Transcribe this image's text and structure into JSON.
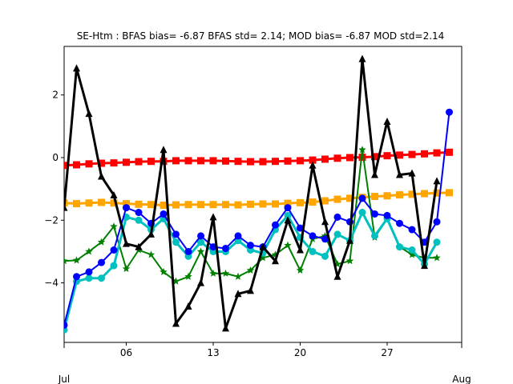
{
  "chart_data": {
    "type": "line",
    "title": "SE-Htm   : BFAS bias= -6.87 BFAS std= 2.14; MOD bias= -6.87 MOD std=2.14",
    "xlabel": "",
    "ylabel": "",
    "x": [
      0,
      1,
      2,
      3,
      4,
      5,
      6,
      7,
      8,
      9,
      10,
      11,
      12,
      13,
      14,
      15,
      16,
      17,
      18,
      19,
      20,
      21,
      22,
      23,
      24,
      25,
      26,
      27,
      28,
      29,
      30,
      31,
      32
    ],
    "xlim": [
      0,
      32
    ],
    "ylim": [
      -5.9,
      3.55
    ],
    "x_ticks": [
      {
        "pos": 5,
        "label": "06"
      },
      {
        "pos": 12,
        "label": "13"
      },
      {
        "pos": 19,
        "label": "20"
      },
      {
        "pos": 26,
        "label": "27"
      }
    ],
    "x_secondary_ticks": [
      {
        "pos": 0,
        "label": "Jul"
      },
      {
        "pos": 32,
        "label": "Aug"
      }
    ],
    "y_ticks": [
      2,
      0,
      -2,
      -4
    ],
    "y_tick_labels": [
      "2",
      "0",
      "−2",
      "−4"
    ],
    "grid": false,
    "legend": "none",
    "series": [
      {
        "color": "#ffa500",
        "marker": "square",
        "line_width": 3,
        "values": [
          -1.45,
          -1.47,
          -1.45,
          -1.43,
          -1.45,
          -1.47,
          -1.49,
          -1.5,
          -1.52,
          -1.51,
          -1.5,
          -1.5,
          -1.5,
          -1.5,
          -1.51,
          -1.49,
          -1.48,
          -1.48,
          -1.46,
          -1.44,
          -1.42,
          -1.38,
          -1.33,
          -1.3,
          -1.27,
          -1.24,
          -1.22,
          -1.19,
          -1.17,
          -1.15,
          -1.13,
          -1.12,
          null
        ]
      },
      {
        "color": "#ff0000",
        "marker": "square",
        "line_width": 3,
        "values": [
          -0.25,
          -0.23,
          -0.2,
          -0.18,
          -0.17,
          -0.15,
          -0.13,
          -0.12,
          -0.12,
          -0.1,
          -0.1,
          -0.1,
          -0.1,
          -0.11,
          -0.12,
          -0.13,
          -0.13,
          -0.12,
          -0.11,
          -0.1,
          -0.08,
          -0.05,
          -0.02,
          0,
          0.01,
          0.03,
          0.06,
          0.08,
          0.1,
          0.12,
          0.15,
          0.17,
          null
        ]
      },
      {
        "color": "#008000",
        "marker": "star",
        "line_width": 2,
        "values": [
          -3.3,
          -3.28,
          -3.0,
          -2.7,
          -2.2,
          -3.55,
          -2.95,
          -3.1,
          -3.65,
          -3.95,
          -3.8,
          -3.0,
          -3.7,
          -3.7,
          -3.8,
          -3.6,
          -3.2,
          -3.1,
          -2.8,
          -3.6,
          -2.6,
          -2.5,
          -3.4,
          -3.3,
          0.25,
          -2.55,
          -1.95,
          -2.85,
          -3.1,
          -3.2,
          -3.2,
          null,
          null
        ]
      },
      {
        "color": "#00c0c0",
        "marker": "circle",
        "line_width": 3,
        "values": [
          -5.5,
          -3.95,
          -3.85,
          -3.85,
          -3.45,
          -1.9,
          -2.0,
          -2.3,
          -1.95,
          -2.7,
          -3.15,
          -2.7,
          -3.0,
          -3.0,
          -2.65,
          -2.95,
          -3.05,
          -2.3,
          -1.85,
          -2.55,
          -3.0,
          -3.15,
          -2.45,
          -2.65,
          -1.75,
          -2.5,
          -1.95,
          -2.85,
          -2.95,
          -3.4,
          -2.7,
          null,
          null
        ]
      },
      {
        "color": "#0000ff",
        "marker": "circle",
        "line_width": 2,
        "values": [
          -5.35,
          -3.8,
          -3.65,
          -3.35,
          -2.95,
          -1.6,
          -1.75,
          -2.1,
          -1.8,
          -2.45,
          -3.0,
          -2.5,
          -2.85,
          -2.9,
          -2.5,
          -2.8,
          -2.85,
          -2.15,
          -1.6,
          -2.25,
          -2.5,
          -2.6,
          -1.9,
          -2.05,
          -1.3,
          -1.8,
          -1.85,
          -2.1,
          -2.3,
          -2.7,
          -2.05,
          1.45,
          null
        ]
      },
      {
        "color": "#000000",
        "marker": "triangle",
        "line_width": 3,
        "values": [
          -1.6,
          2.85,
          1.4,
          -0.6,
          -1.2,
          -2.75,
          -2.85,
          -2.45,
          0.25,
          -5.3,
          -4.75,
          -4.0,
          -1.9,
          -5.45,
          -4.35,
          -4.25,
          -2.85,
          -3.3,
          -2.0,
          -2.95,
          -0.25,
          -2.05,
          -3.8,
          -2.65,
          3.15,
          -0.55,
          1.15,
          -0.55,
          -0.5,
          -3.45,
          -0.75,
          null,
          null
        ]
      }
    ]
  }
}
